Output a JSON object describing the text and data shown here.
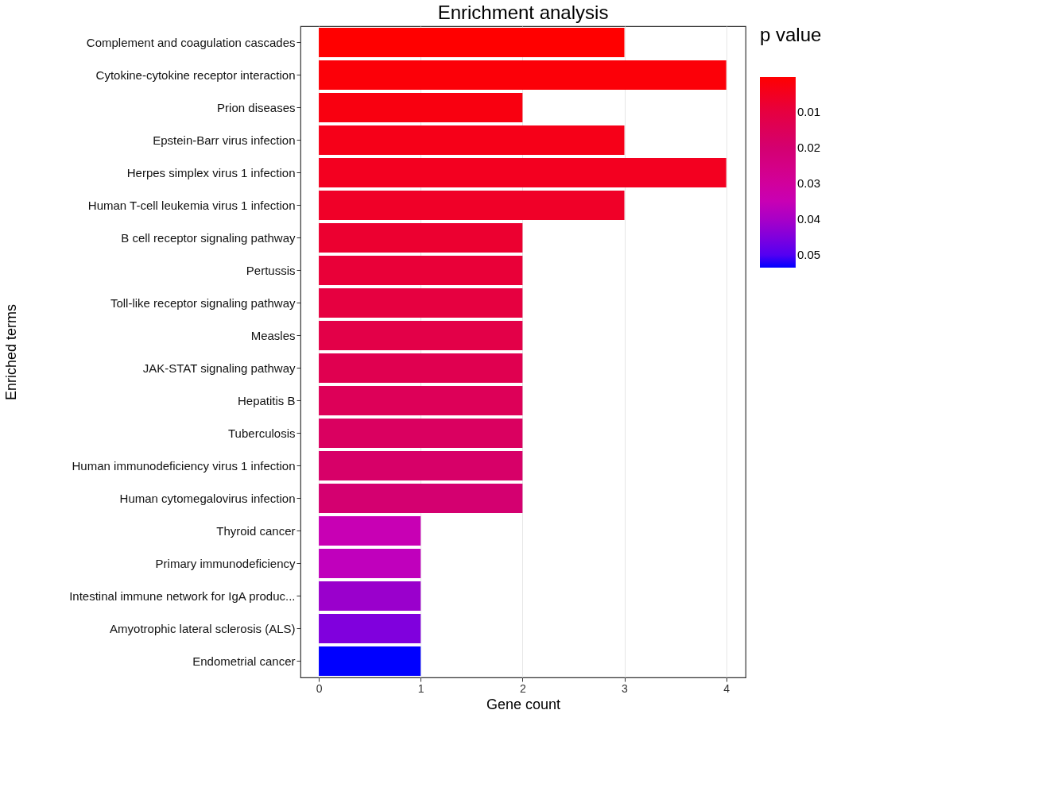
{
  "chart_data": {
    "type": "bar",
    "orientation": "horizontal",
    "title": "Enrichment analysis",
    "xlabel": "Gene count",
    "ylabel": "Enriched terms",
    "clabel": "p value",
    "categories": [
      "Complement and coagulation cascades",
      "Cytokine-cytokine receptor interaction",
      "Prion diseases",
      "Epstein-Barr virus infection",
      "Herpes simplex virus 1 infection",
      "Human T-cell leukemia virus 1 infection",
      "B cell receptor signaling pathway",
      "Pertussis",
      "Toll-like receptor signaling pathway",
      "Measles",
      "JAK-STAT signaling pathway",
      "Hepatitis B",
      "Tuberculosis",
      "Human immunodeficiency virus 1 infection",
      "Human cytomegalovirus infection",
      "Thyroid cancer",
      "Primary immunodeficiency",
      "Intestinal immune network for IgA produc...",
      "Amyotrophic lateral sclerosis (ALS)",
      "Endometrial cancer"
    ],
    "values": [
      3,
      4,
      2,
      3,
      4,
      3,
      2,
      2,
      2,
      2,
      2,
      2,
      2,
      2,
      2,
      1,
      1,
      1,
      1,
      1
    ],
    "cvalues": [
      0.001,
      0.002,
      0.003,
      0.004,
      0.005,
      0.006,
      0.008,
      0.009,
      0.01,
      0.012,
      0.014,
      0.015,
      0.016,
      0.018,
      0.02,
      0.035,
      0.036,
      0.042,
      0.045,
      0.053
    ],
    "colors": [
      "#ff0000",
      "#fc0008",
      "#f90010",
      "#f60018",
      "#f30020",
      "#f00028",
      "#ec0030",
      "#e90038",
      "#e60040",
      "#e30048",
      "#e00050",
      "#dd0058",
      "#da0060",
      "#d70068",
      "#d40070",
      "#c800b4",
      "#c000bc",
      "#9a00cc",
      "#8000dd",
      "#0000ff"
    ],
    "clim": [
      0.0003,
      0.0535
    ],
    "cticks": [
      0.01,
      0.02,
      0.03,
      0.04,
      0.05
    ],
    "xlim": [
      -0.18,
      4.19
    ],
    "xticks": [
      0,
      1,
      2,
      3,
      4
    ],
    "grid": "x"
  }
}
